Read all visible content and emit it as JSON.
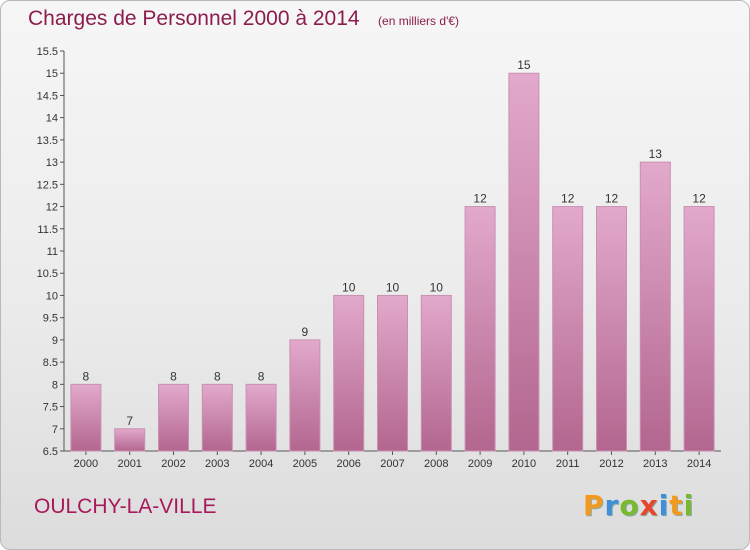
{
  "chart_data": {
    "type": "bar",
    "title": "Charges de Personnel 2000 à 2014",
    "subtitle": "(en milliers d'€)",
    "categories": [
      "2000",
      "2001",
      "2002",
      "2003",
      "2004",
      "2005",
      "2006",
      "2007",
      "2008",
      "2009",
      "2010",
      "2011",
      "2012",
      "2013",
      "2014"
    ],
    "values": [
      8,
      7,
      8,
      8,
      8,
      9,
      10,
      10,
      10,
      12,
      15,
      12,
      12,
      13,
      12
    ],
    "data_labels": [
      "8",
      "7",
      "8",
      "8",
      "8",
      "9",
      "10",
      "10",
      "10",
      "12",
      "15",
      "12",
      "12",
      "13",
      "12"
    ],
    "ylim": [
      6.5,
      15.5
    ],
    "yticks": [
      6.5,
      7,
      7.5,
      8,
      8.5,
      9,
      9.5,
      10,
      10.5,
      11,
      11.5,
      12,
      12.5,
      13,
      13.5,
      14,
      14.5,
      15,
      15.5
    ],
    "xlabel": "",
    "ylabel": "",
    "grid": false,
    "bar_color": "#c06a9a"
  },
  "footer": {
    "commune": "OULCHY-LA-VILLE",
    "brand": [
      "P",
      "r",
      "o",
      "x",
      "i",
      "t",
      "i"
    ],
    "brand_colors": [
      "#f39a1e",
      "#3c8fd8",
      "#7ab82e",
      "#e8462c",
      "#3c8fd8",
      "#f39a1e",
      "#7ab82e"
    ]
  }
}
